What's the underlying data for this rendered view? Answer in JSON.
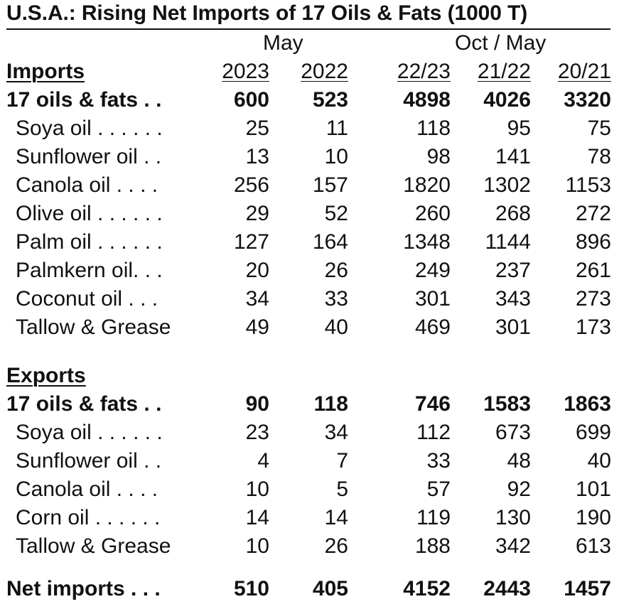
{
  "title": "U.S.A.: Rising Net Imports of 17 Oils & Fats (1000 T)",
  "group_headers": [
    "May",
    "Oct / May"
  ],
  "columns": [
    "2023",
    "2022",
    "22/23",
    "21/22",
    "20/21"
  ],
  "imports": {
    "heading": "Imports",
    "total": {
      "label": "17 oils & fats . .",
      "values": [
        "600",
        "523",
        "4898",
        "4026",
        "3320"
      ]
    },
    "rows": [
      {
        "label": "Soya oil . . . . . .",
        "values": [
          "25",
          "11",
          "118",
          "95",
          "75"
        ]
      },
      {
        "label": "Sunflower oil . .",
        "values": [
          "13",
          "10",
          "98",
          "141",
          "78"
        ]
      },
      {
        "label": "Canola oil . . . .",
        "values": [
          "256",
          "157",
          "1820",
          "1302",
          "1153"
        ]
      },
      {
        "label": "Olive oil . . . . . .",
        "values": [
          "29",
          "52",
          "260",
          "268",
          "272"
        ]
      },
      {
        "label": "Palm oil . . . . . .",
        "values": [
          "127",
          "164",
          "1348",
          "1144",
          "896"
        ]
      },
      {
        "label": "Palmkern oil. . .",
        "values": [
          "20",
          "26",
          "249",
          "237",
          "261"
        ]
      },
      {
        "label": "Coconut oil . . .",
        "values": [
          "34",
          "33",
          "301",
          "343",
          "273"
        ]
      },
      {
        "label": "Tallow & Grease",
        "values": [
          "49",
          "40",
          "469",
          "301",
          "173"
        ]
      }
    ]
  },
  "exports": {
    "heading": "Exports",
    "total": {
      "label": "17 oils & fats . .",
      "values": [
        "90",
        "118",
        "746",
        "1583",
        "1863"
      ]
    },
    "rows": [
      {
        "label": "Soya oil . . . . . .",
        "values": [
          "23",
          "34",
          "112",
          "673",
          "699"
        ]
      },
      {
        "label": "Sunflower oil . .",
        "values": [
          "4",
          "7",
          "33",
          "48",
          "40"
        ]
      },
      {
        "label": "Canola oil . . . .",
        "values": [
          "10",
          "5",
          "57",
          "92",
          "101"
        ]
      },
      {
        "label": "Corn oil . . . . . .",
        "values": [
          "14",
          "14",
          "119",
          "130",
          "190"
        ]
      },
      {
        "label": "Tallow & Grease",
        "values": [
          "10",
          "26",
          "188",
          "342",
          "613"
        ]
      }
    ]
  },
  "net_imports": {
    "label": "Net imports . . .",
    "values": [
      "510",
      "405",
      "4152",
      "2443",
      "1457"
    ]
  }
}
